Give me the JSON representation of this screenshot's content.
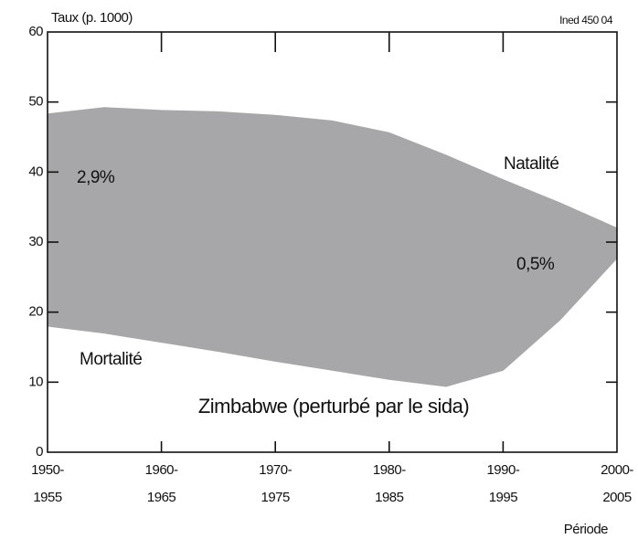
{
  "chart_data": {
    "type": "area",
    "title": "Zimbabwe (perturbé par le sida)",
    "y_axis_label": "Taux (p. 1000)",
    "x_axis_label": "Période",
    "source": "Ined 450 04",
    "annotations": [
      "Natalité",
      "Mortalité",
      "2,9%",
      "0,5%"
    ],
    "x": [
      1950,
      1955,
      1960,
      1965,
      1970,
      1975,
      1980,
      1985,
      1990,
      1995,
      2000
    ],
    "series": [
      {
        "name": "Natalité",
        "color": "#a7a7a9",
        "values": [
          48.3,
          49.2,
          48.8,
          48.6,
          48.1,
          47.3,
          45.6,
          42.4,
          38.9,
          35.6,
          32
        ]
      },
      {
        "name": "Mortalité",
        "color": "#a7a7a9",
        "values": [
          18,
          17,
          15.7,
          14.4,
          13,
          11.7,
          10.4,
          9.4,
          11.7,
          18.9,
          27.7
        ]
      }
    ],
    "xlim": [
      1950,
      2000
    ],
    "xticks": [
      {
        "value": 1950,
        "label": [
          "1950-",
          "1955"
        ]
      },
      {
        "value": 1960,
        "label": [
          "1960-",
          "1965"
        ]
      },
      {
        "value": 1970,
        "label": [
          "1970-",
          "1975"
        ]
      },
      {
        "value": 1980,
        "label": [
          "1980-",
          "1985"
        ]
      },
      {
        "value": 1990,
        "label": [
          "1990-",
          "1995"
        ]
      },
      {
        "value": 2000,
        "label": [
          "2000-",
          "2005"
        ]
      }
    ],
    "ylim": [
      0,
      60
    ],
    "yticks": [
      0,
      10,
      20,
      30,
      40,
      50,
      60
    ]
  }
}
